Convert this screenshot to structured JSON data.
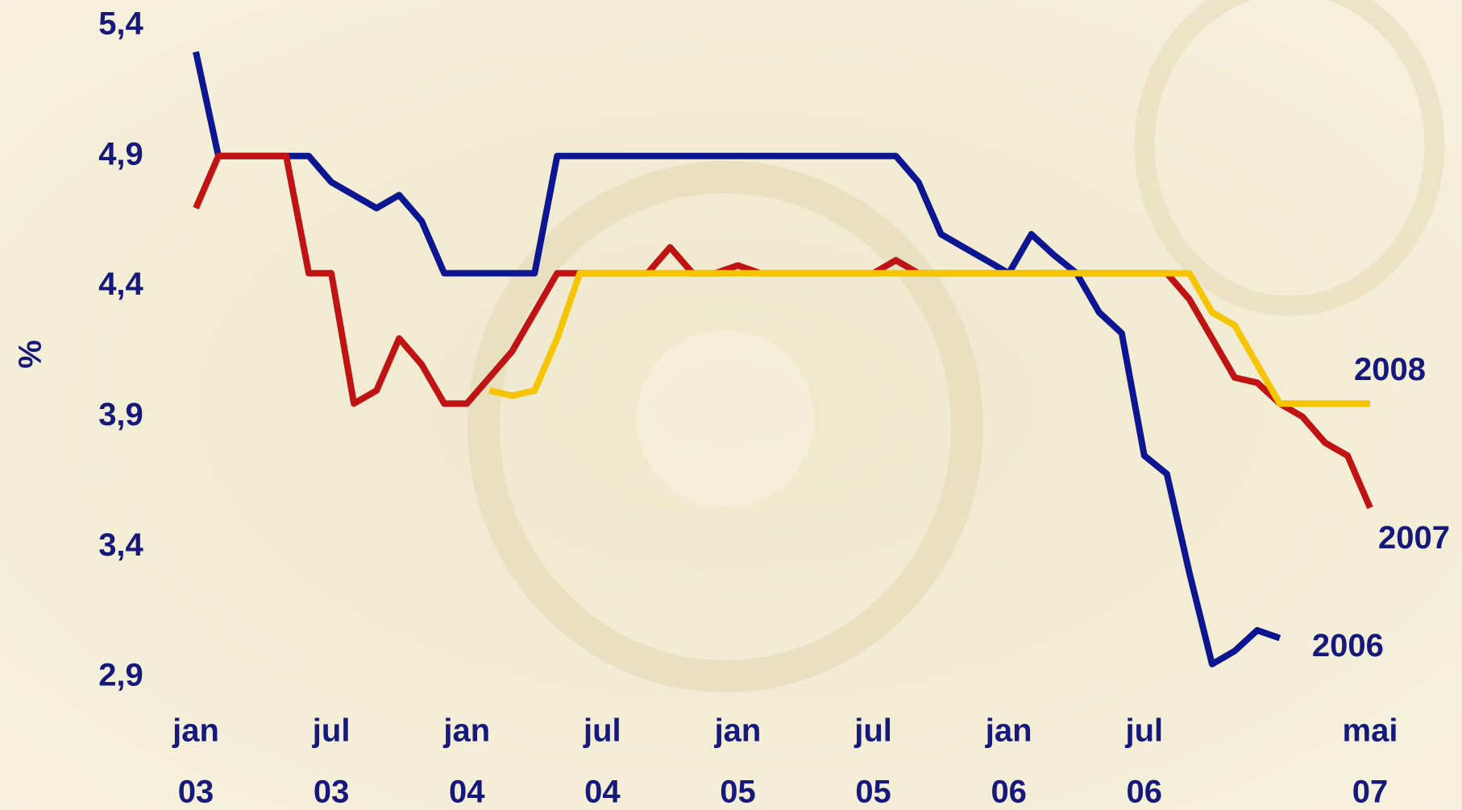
{
  "chart_data": {
    "type": "line",
    "y_label": "%",
    "x": [
      "2003-01",
      "2003-02",
      "2003-03",
      "2003-04",
      "2003-05",
      "2003-06",
      "2003-07",
      "2003-08",
      "2003-09",
      "2003-10",
      "2003-11",
      "2003-12",
      "2004-01",
      "2004-02",
      "2004-03",
      "2004-04",
      "2004-05",
      "2004-06",
      "2004-07",
      "2004-08",
      "2004-09",
      "2004-10",
      "2004-11",
      "2004-12",
      "2005-01",
      "2005-02",
      "2005-03",
      "2005-04",
      "2005-05",
      "2005-06",
      "2005-07",
      "2005-08",
      "2005-09",
      "2005-10",
      "2005-11",
      "2005-12",
      "2006-01",
      "2006-02",
      "2006-03",
      "2006-04",
      "2006-05",
      "2006-06",
      "2006-07",
      "2006-08",
      "2006-09",
      "2006-10",
      "2006-11",
      "2006-12",
      "2007-01",
      "2007-02",
      "2007-03",
      "2007-04",
      "2007-05"
    ],
    "xlim": [
      "2003-01",
      "2007-05"
    ],
    "xticks": [
      {
        "value": "2003-01",
        "label": [
          "jan",
          "03"
        ]
      },
      {
        "value": "2003-07",
        "label": [
          "jul",
          "03"
        ]
      },
      {
        "value": "2004-01",
        "label": [
          "jan",
          "04"
        ]
      },
      {
        "value": "2004-07",
        "label": [
          "jul",
          "04"
        ]
      },
      {
        "value": "2005-01",
        "label": [
          "jan",
          "05"
        ]
      },
      {
        "value": "2005-07",
        "label": [
          "jul",
          "05"
        ]
      },
      {
        "value": "2006-01",
        "label": [
          "jan",
          "06"
        ]
      },
      {
        "value": "2006-07",
        "label": [
          "jul",
          "06"
        ]
      },
      {
        "value": "2007-05",
        "label": [
          "mai",
          "07"
        ]
      }
    ],
    "ylim": [
      2.9,
      5.4
    ],
    "yticks": [
      {
        "value": 2.9,
        "label": "2,9"
      },
      {
        "value": 3.4,
        "label": "3,4"
      },
      {
        "value": 3.9,
        "label": "3,9"
      },
      {
        "value": 4.4,
        "label": "4,4"
      },
      {
        "value": 4.9,
        "label": "4,9"
      },
      {
        "value": 5.4,
        "label": "5,4"
      }
    ],
    "grid": false,
    "series": [
      {
        "name": "2006",
        "color": "#0c1690",
        "values": [
          5.3,
          4.9,
          4.9,
          4.9,
          4.9,
          4.9,
          4.8,
          4.75,
          4.7,
          4.75,
          4.65,
          4.45,
          4.45,
          4.45,
          4.45,
          4.45,
          4.9,
          4.9,
          4.9,
          4.9,
          4.9,
          4.9,
          4.9,
          4.9,
          4.9,
          4.9,
          4.9,
          4.9,
          4.9,
          4.9,
          4.9,
          4.9,
          4.8,
          4.6,
          4.55,
          4.5,
          4.45,
          4.6,
          4.52,
          4.45,
          4.3,
          4.22,
          3.75,
          3.68,
          3.3,
          2.95,
          3.0,
          3.08,
          3.05,
          null,
          null,
          null,
          null
        ]
      },
      {
        "name": "2007",
        "color": "#c01414",
        "values": [
          4.7,
          4.9,
          4.9,
          4.9,
          4.9,
          4.45,
          4.45,
          3.95,
          4.0,
          4.2,
          4.1,
          3.95,
          3.95,
          4.05,
          4.15,
          4.3,
          4.45,
          4.45,
          4.45,
          4.45,
          4.45,
          4.55,
          4.45,
          4.45,
          4.48,
          4.45,
          4.45,
          4.45,
          4.45,
          4.45,
          4.45,
          4.5,
          4.45,
          4.45,
          4.45,
          4.45,
          4.45,
          4.45,
          4.45,
          4.45,
          4.45,
          4.45,
          4.45,
          4.45,
          4.35,
          4.2,
          4.05,
          4.03,
          3.95,
          3.9,
          3.8,
          3.75,
          3.55
        ]
      },
      {
        "name": "2008",
        "color": "#f6c400",
        "values": [
          null,
          null,
          null,
          null,
          null,
          null,
          null,
          null,
          null,
          null,
          null,
          null,
          null,
          4.0,
          3.98,
          4.0,
          4.2,
          4.45,
          4.45,
          4.45,
          4.45,
          4.45,
          4.45,
          4.45,
          4.45,
          4.45,
          4.45,
          4.45,
          4.45,
          4.45,
          4.45,
          4.45,
          4.45,
          4.45,
          4.45,
          4.45,
          4.45,
          4.45,
          4.45,
          4.45,
          4.45,
          4.45,
          4.45,
          4.45,
          4.45,
          4.3,
          4.25,
          4.1,
          3.95,
          3.95,
          3.95,
          3.95,
          3.95
        ]
      }
    ]
  }
}
